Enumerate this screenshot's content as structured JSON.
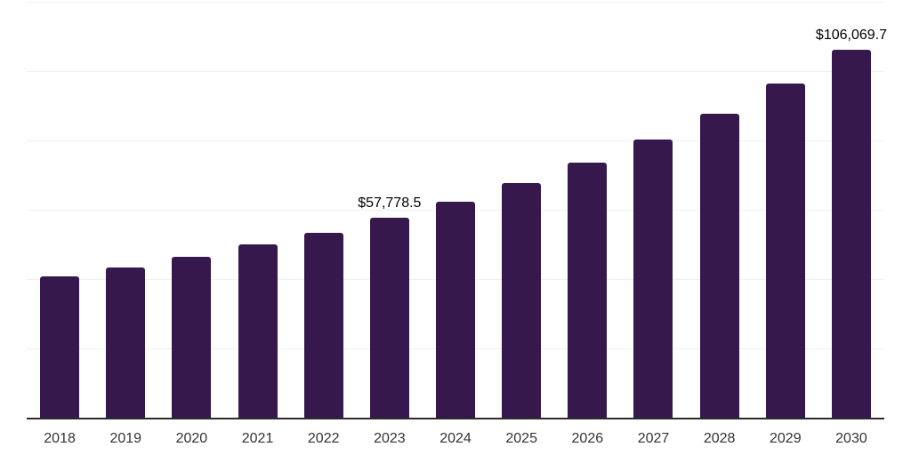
{
  "chart_data": {
    "type": "bar",
    "title": "",
    "xlabel": "",
    "ylabel": "",
    "categories": [
      "2018",
      "2019",
      "2020",
      "2021",
      "2022",
      "2023",
      "2024",
      "2025",
      "2026",
      "2027",
      "2028",
      "2029",
      "2030"
    ],
    "values": [
      40800,
      43300,
      46400,
      50000,
      53450,
      57778.5,
      62250,
      67600,
      73500,
      80200,
      87700,
      96350,
      106069.7
    ],
    "data_labels": [
      {
        "index": 5,
        "text": "$57,778.5"
      },
      {
        "index": 12,
        "text": "$106,069.7"
      }
    ],
    "ylim": [
      0,
      120000
    ],
    "gridline_values": [
      20000,
      40000,
      60000,
      80000,
      100000,
      120000
    ],
    "grid": "horizontal",
    "legend_position": "none",
    "y_axis_tick_labels_visible": false
  },
  "colors": {
    "bar": "#36184C",
    "gridline": "#F0F0F0",
    "axis_line": "#2B2B2B",
    "tick_label": "#333333",
    "data_label": "#000000",
    "background": "#FFFFFF"
  }
}
